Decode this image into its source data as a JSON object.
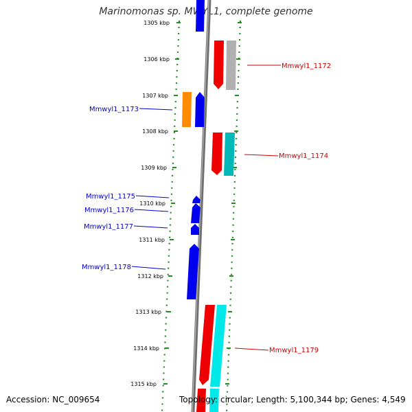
{
  "title": "Marinomonas sp. MWYL1, complete genome",
  "footer": {
    "accession": "Accession: NC_009654",
    "summary": "Topology: circular; Length: 5,100,344 bp; Genes: 4,549"
  },
  "colors": {
    "backbone": "#808080",
    "tick_dots": "#228b22",
    "forward_label": "#cc0000",
    "reverse_label": "#0000cc"
  },
  "ticks": [
    "1305 kbp",
    "1306 kbp",
    "1307 kbp",
    "1308 kbp",
    "1309 kbp",
    "1310 kbp",
    "1311 kbp",
    "1312 kbp",
    "1313 kbp",
    "1314 kbp",
    "1315 kbp"
  ],
  "labels": {
    "forward": [
      "Mmwyl1_1172",
      "Mmwyl1_1174",
      "Mmwyl1_1179"
    ],
    "reverse": [
      "Mmwyl1_1173",
      "Mmwyl1_1175",
      "Mmwyl1_1176",
      "Mmwyl1_1177",
      "Mmwyl1_1178"
    ]
  },
  "gene_colors": {
    "red": "#ee0000",
    "gray": "#b0b0b0",
    "teal": "#00b8b8",
    "cyan": "#00e8e8",
    "blue": "#0000ee",
    "orange": "#ff8c00"
  }
}
